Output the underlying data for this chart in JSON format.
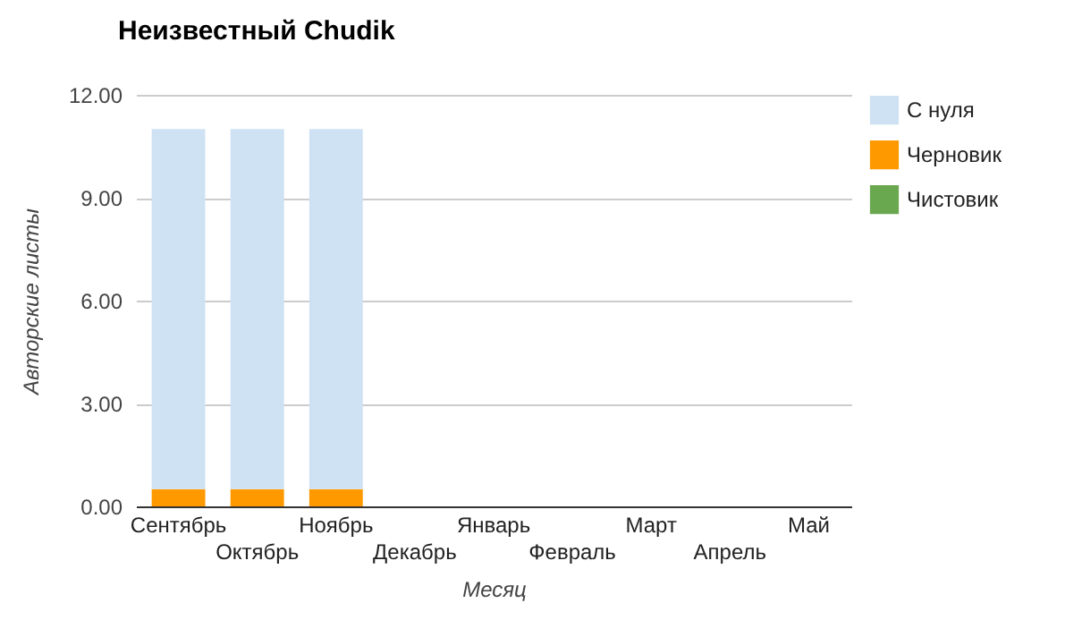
{
  "chart_data": {
    "type": "bar",
    "title": "Неизвестный Chudik",
    "xlabel": "Месяц",
    "ylabel": "Авторские листы",
    "categories": [
      "Сентябрь",
      "Октябрь",
      "Ноябрь",
      "Декабрь",
      "Январь",
      "Февраль",
      "Март",
      "Апрель",
      "Май"
    ],
    "stacked": true,
    "series": [
      {
        "name": "Чистовик",
        "color": "#6aa84f",
        "values": [
          0,
          0,
          0,
          null,
          null,
          null,
          null,
          null,
          null
        ]
      },
      {
        "name": "Черновик",
        "color": "#ff9900",
        "values": [
          0.5,
          0.5,
          0.5,
          null,
          null,
          null,
          null,
          null,
          null
        ]
      },
      {
        "name": "С нуля",
        "color": "#cfe2f3",
        "values": [
          10.5,
          10.5,
          10.5,
          null,
          null,
          null,
          null,
          null,
          null
        ]
      }
    ],
    "ylim": [
      0,
      12
    ],
    "yticks": [
      {
        "value": 0,
        "label": "0.00"
      },
      {
        "value": 3,
        "label": "3.00"
      },
      {
        "value": 6,
        "label": "6.00"
      },
      {
        "value": 9,
        "label": "9.00"
      },
      {
        "value": 12,
        "label": "12.00"
      }
    ],
    "grid": "y",
    "legend": "right"
  }
}
